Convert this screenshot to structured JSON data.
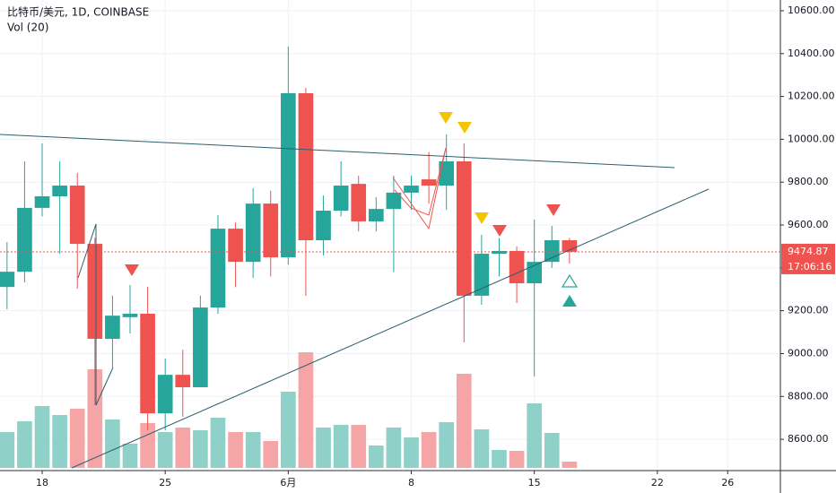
{
  "header": {
    "symbol": "比特币/美元, 1D, COINBASE",
    "indicator": "Vol (20)"
  },
  "chart_data": {
    "type": "candlestick",
    "open": [
      9311,
      9382,
      9680,
      9734,
      9784,
      9512,
      9069,
      9170,
      9186,
      8721,
      8901,
      8843,
      9215,
      9583,
      9428,
      9700,
      9449,
      10215,
      9529,
      9667,
      9792,
      9617,
      9675,
      9751,
      9813,
      9784,
      9897,
      9270,
      9466,
      9479,
      9328,
      9428,
      9529
    ],
    "high": [
      9520,
      9897,
      9981,
      9897,
      9843,
      9540,
      9270,
      9320,
      9311,
      8977,
      9018,
      9270,
      9646,
      9612,
      9772,
      9760,
      10433,
      10240,
      9738,
      9897,
      9830,
      9730,
      9830,
      9830,
      9940,
      10023,
      9981,
      9554,
      9540,
      9500,
      9625,
      9596,
      9540
    ],
    "low": [
      9207,
      9332,
      9640,
      9466,
      9303,
      8759,
      8935,
      9094,
      8642,
      8642,
      8705,
      8850,
      9186,
      9310,
      9353,
      9360,
      9416,
      9269,
      9458,
      9640,
      9570,
      9570,
      9380,
      9670,
      9700,
      9670,
      9052,
      9228,
      9360,
      9236,
      8893,
      9400,
      9420
    ],
    "close": [
      9382,
      9680,
      9734,
      9784,
      9512,
      9069,
      9177,
      9186,
      8721,
      8901,
      8843,
      9215,
      9583,
      9428,
      9700,
      9449,
      10215,
      9529,
      9667,
      9784,
      9617,
      9675,
      9751,
      9784,
      9784,
      9897,
      9270,
      9466,
      9479,
      9328,
      9428,
      9529,
      9475
    ],
    "volume": [
      40,
      52,
      69,
      59,
      66,
      110,
      54,
      27,
      50,
      40,
      45,
      42,
      56,
      40,
      40,
      30,
      85,
      129,
      45,
      48,
      48,
      25,
      45,
      34,
      40,
      51,
      105,
      43,
      20,
      19,
      72,
      39,
      7
    ],
    "up_color": "#26a69a",
    "down_color": "#ef5350",
    "up_volume_color": "#8fd1c9",
    "down_volume_color": "#f5a5a5",
    "xlim": [
      -0.4,
      44
    ],
    "xticks": [
      {
        "value": 2,
        "label": "18"
      },
      {
        "value": 9,
        "label": "25"
      },
      {
        "value": 16,
        "label": "6月"
      },
      {
        "value": 23,
        "label": "8"
      },
      {
        "value": 30,
        "label": "15"
      },
      {
        "value": 37,
        "label": "22"
      },
      {
        "value": 41,
        "label": "26"
      }
    ],
    "ylim": [
      8454,
      10650
    ],
    "yticks": [
      {
        "value": 8600,
        "label": "8600.00"
      },
      {
        "value": 8800,
        "label": "8800.00"
      },
      {
        "value": 9000,
        "label": "9000.00"
      },
      {
        "value": 9200,
        "label": "9200.00"
      },
      {
        "value": 9400,
        "label": "9400.00"
      },
      {
        "value": 9600,
        "label": "9600.00"
      },
      {
        "value": 9800,
        "label": "9800.00"
      },
      {
        "value": 10000,
        "label": "10000.00"
      },
      {
        "value": 10200,
        "label": "10200.00"
      },
      {
        "value": 10400,
        "label": "10400.00"
      },
      {
        "value": 10600,
        "label": "10600.00"
      }
    ],
    "grid": true,
    "last_price": 9474.87,
    "countdown": "17:06:16"
  }
}
